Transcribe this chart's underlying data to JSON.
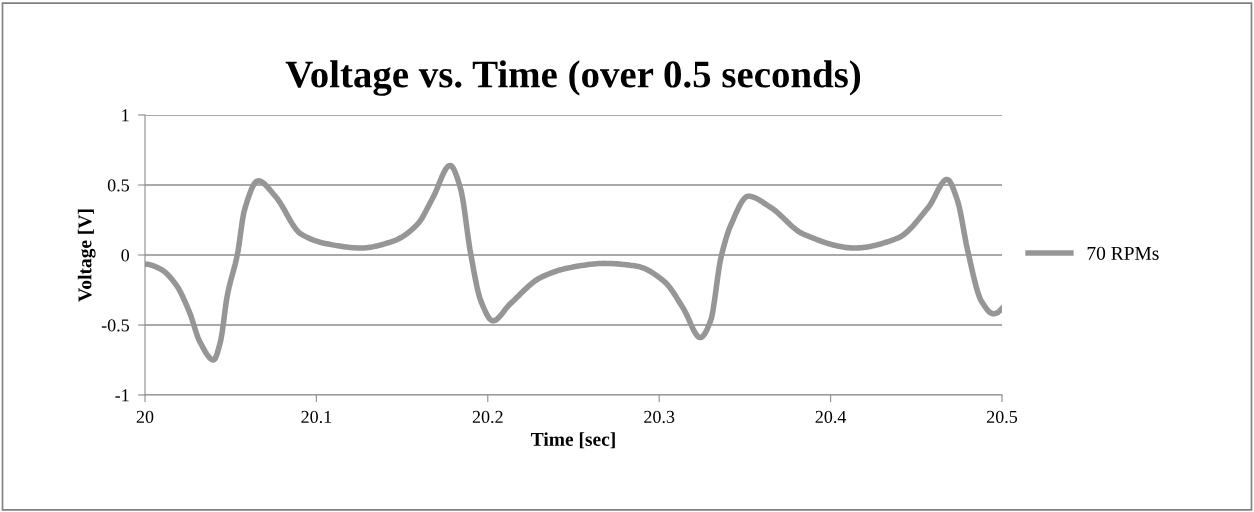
{
  "chart_data": {
    "type": "line",
    "title": "Voltage vs. Time (over 0.5 seconds)",
    "xlabel": "Time [sec]",
    "ylabel": "Voltage [V]",
    "xlim": [
      20,
      20.5
    ],
    "xticks": [
      20,
      20.1,
      20.2,
      20.3,
      20.4,
      20.5
    ],
    "ylim": [
      -1,
      1
    ],
    "yticks": [
      -1,
      -0.5,
      0,
      0.5,
      1
    ],
    "grid": "y",
    "legend": "right",
    "marker": "none",
    "line_style": "solid",
    "series": [
      {
        "name": "70 RPMs",
        "color": "#969696",
        "x": [
          20.0,
          20.009,
          20.018,
          20.026,
          20.032,
          20.04,
          20.044,
          20.048,
          20.054,
          20.058,
          20.066,
          20.076,
          20.091,
          20.106,
          20.126,
          20.145,
          20.159,
          20.168,
          20.178,
          20.184,
          20.19,
          20.196,
          20.203,
          20.213,
          20.231,
          20.248,
          20.268,
          20.287,
          20.303,
          20.314,
          20.324,
          20.33,
          20.336,
          20.342,
          20.352,
          20.365,
          20.384,
          20.414,
          20.439,
          20.457,
          20.468,
          20.474,
          20.48,
          20.488,
          20.495,
          20.5
        ],
        "values": [
          -0.065,
          -0.1,
          -0.21,
          -0.41,
          -0.62,
          -0.75,
          -0.62,
          -0.29,
          0.01,
          0.32,
          0.53,
          0.42,
          0.15,
          0.08,
          0.05,
          0.1,
          0.22,
          0.41,
          0.64,
          0.48,
          0.01,
          -0.33,
          -0.47,
          -0.35,
          -0.16,
          -0.09,
          -0.06,
          -0.08,
          -0.19,
          -0.38,
          -0.59,
          -0.47,
          -0.02,
          0.22,
          0.42,
          0.34,
          0.15,
          0.05,
          0.12,
          0.34,
          0.54,
          0.39,
          0.03,
          -0.33,
          -0.42,
          -0.38
        ]
      }
    ]
  }
}
